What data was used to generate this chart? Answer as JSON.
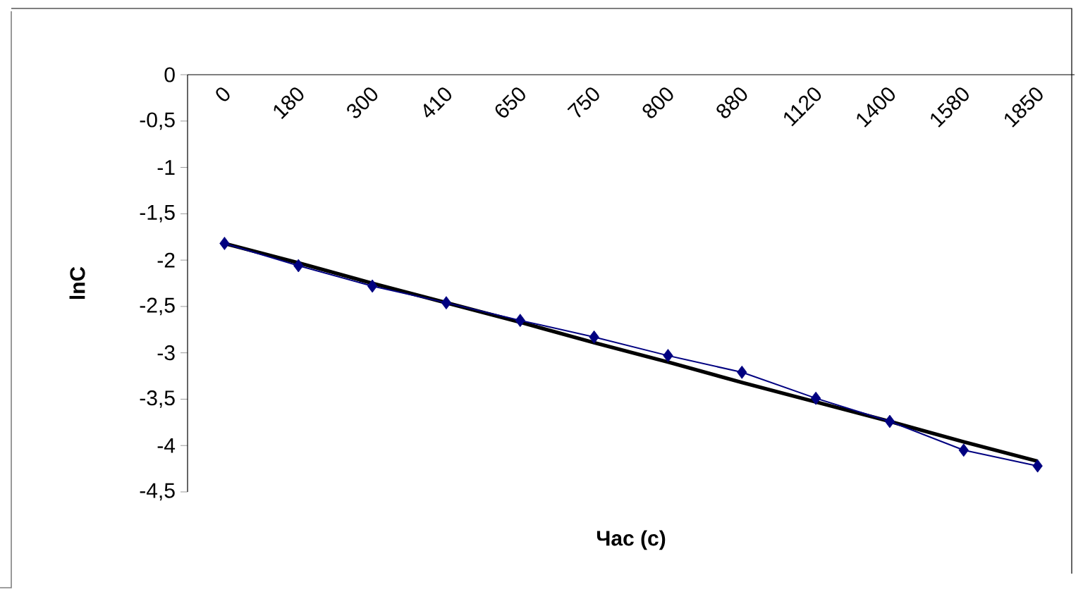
{
  "chart_data": {
    "type": "line",
    "xlabel": "Час (с)",
    "ylabel": "lnC",
    "categories": [
      "0",
      "180",
      "300",
      "410",
      "650",
      "750",
      "800",
      "880",
      "1120",
      "1400",
      "1580",
      "1850"
    ],
    "ylim": [
      -4.5,
      0
    ],
    "yticks": [
      0,
      {
        "value": -0.5,
        "label": "-0,5"
      },
      -1,
      {
        "value": -1.5,
        "label": "-1,5"
      },
      -2,
      {
        "value": -2.5,
        "label": "-2,5"
      },
      -3,
      {
        "value": -3.5,
        "label": "-3,5"
      },
      -4,
      {
        "value": -4.5,
        "label": "-4,5"
      }
    ],
    "marker": "diamond",
    "series": [
      {
        "color": "#000080",
        "values": [
          -1.82,
          -2.06,
          -2.28,
          -2.46,
          -2.65,
          -2.83,
          -3.03,
          -3.21,
          -3.49,
          -3.74,
          -4.05,
          -4.22
        ]
      },
      {
        "type": "line",
        "color": "#000000",
        "marker": "none",
        "values": [
          -1.82,
          -2.03,
          -2.25,
          -2.46,
          -2.67,
          -2.89,
          -3.1,
          -3.32,
          -3.53,
          -3.74,
          -3.96,
          -4.17
        ]
      }
    ]
  }
}
